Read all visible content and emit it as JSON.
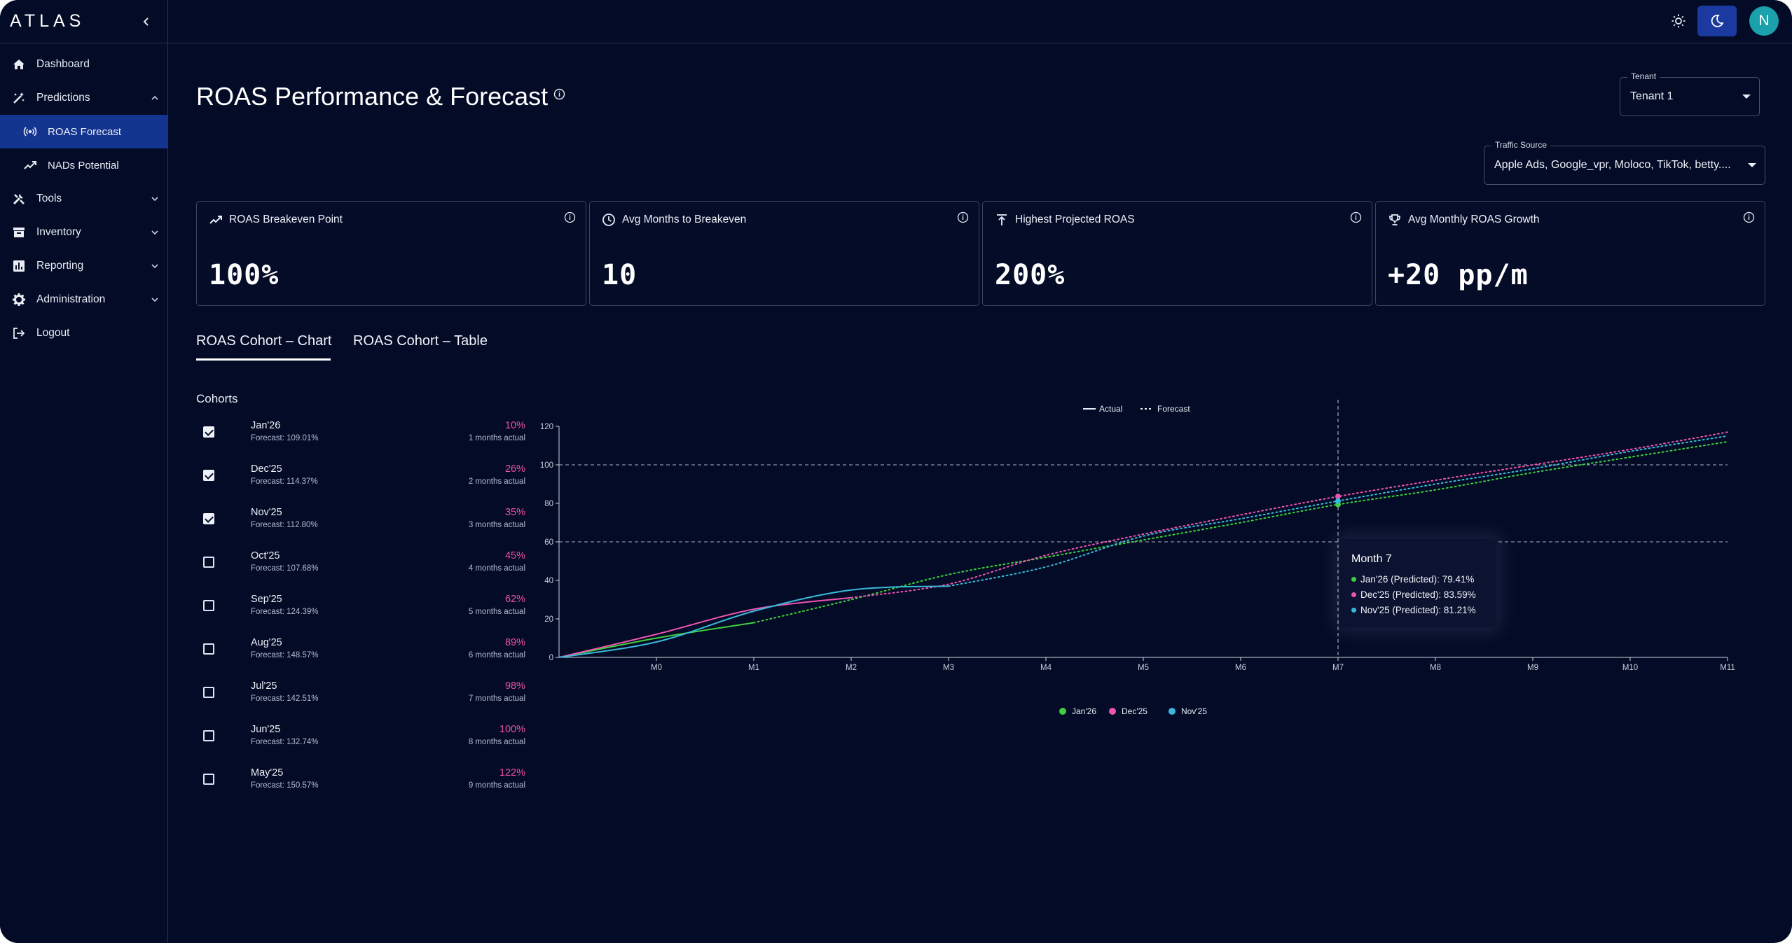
{
  "app": {
    "logo": "ATLAS",
    "avatar_initial": "N"
  },
  "sidebar": {
    "items": [
      {
        "label": "Dashboard",
        "icon": "home-icon"
      },
      {
        "label": "Predictions",
        "icon": "magic-wand-icon"
      },
      {
        "label": "ROAS Forecast",
        "icon": "broadcast-icon"
      },
      {
        "label": "NADs Potential",
        "icon": "trending-up-icon"
      },
      {
        "label": "Tools",
        "icon": "tools-icon"
      },
      {
        "label": "Inventory",
        "icon": "archive-icon"
      },
      {
        "label": "Reporting",
        "icon": "bar-chart-icon"
      },
      {
        "label": "Administration",
        "icon": "gear-icon"
      },
      {
        "label": "Logout",
        "icon": "logout-icon"
      }
    ]
  },
  "header": {
    "title": "ROAS Performance & Forecast"
  },
  "filters": {
    "tenant": {
      "label": "Tenant",
      "value": "Tenant 1"
    },
    "traffic": {
      "label": "Traffic Source",
      "value": "Apple Ads, Google_vpr, Moloco, TikTok, betty...."
    }
  },
  "kpis": [
    {
      "title": "ROAS Breakeven Point",
      "value": "100%",
      "icon": "trending-up-icon"
    },
    {
      "title": "Avg Months to Breakeven",
      "value": "10",
      "icon": "clock-icon"
    },
    {
      "title": "Highest Projected ROAS",
      "value": "200%",
      "icon": "arrow-top-icon"
    },
    {
      "title": "Avg Monthly ROAS Growth",
      "value": "+20 pp/m",
      "icon": "trophy-icon"
    }
  ],
  "tabs": [
    "ROAS Cohort – Chart",
    "ROAS Cohort – Table"
  ],
  "cohorts": {
    "title": "Cohorts",
    "rows": [
      {
        "name": "Jan'26",
        "forecast": "Forecast: 109.01%",
        "pct": "10%",
        "months": "1 months actual",
        "checked": true
      },
      {
        "name": "Dec'25",
        "forecast": "Forecast: 114.37%",
        "pct": "26%",
        "months": "2 months actual",
        "checked": true
      },
      {
        "name": "Nov'25",
        "forecast": "Forecast: 112.80%",
        "pct": "35%",
        "months": "3 months actual",
        "checked": true
      },
      {
        "name": "Oct'25",
        "forecast": "Forecast: 107.68%",
        "pct": "45%",
        "months": "4 months actual",
        "checked": false
      },
      {
        "name": "Sep'25",
        "forecast": "Forecast: 124.39%",
        "pct": "62%",
        "months": "5 months actual",
        "checked": false
      },
      {
        "name": "Aug'25",
        "forecast": "Forecast: 148.57%",
        "pct": "89%",
        "months": "6 months actual",
        "checked": false
      },
      {
        "name": "Jul'25",
        "forecast": "Forecast: 142.51%",
        "pct": "98%",
        "months": "7 months actual",
        "checked": false
      },
      {
        "name": "Jun'25",
        "forecast": "Forecast: 132.74%",
        "pct": "100%",
        "months": "8 months actual",
        "checked": false
      },
      {
        "name": "May'25",
        "forecast": "Forecast: 150.57%",
        "pct": "122%",
        "months": "9 months actual",
        "checked": false
      }
    ]
  },
  "chart_data": {
    "type": "line",
    "legend_top": [
      "Actual",
      "Forecast"
    ],
    "x": [
      "M0",
      "M1",
      "M2",
      "M3",
      "M4",
      "M5",
      "M6",
      "M7",
      "M8",
      "M9",
      "M10",
      "M11"
    ],
    "ylim": [
      0,
      120
    ],
    "yticks": [
      "0",
      "20",
      "40",
      "60",
      "80",
      "100",
      "120"
    ],
    "reference_lines": [
      60,
      100
    ],
    "crosshair_x": "M7",
    "series": [
      {
        "name": "Jan'26",
        "color": "#3ed03e",
        "actual_x": [
          -1,
          0,
          1
        ],
        "actual_y": [
          0,
          10,
          18
        ],
        "forecast_x": [
          1,
          2,
          3,
          4,
          5,
          6,
          7,
          8,
          9,
          10,
          11
        ],
        "forecast_y": [
          18,
          30,
          43,
          52,
          61,
          70,
          79.41,
          87,
          96,
          104,
          112
        ]
      },
      {
        "name": "Dec'25",
        "color": "#ef54b0",
        "actual_x": [
          -1,
          0,
          1,
          2
        ],
        "actual_y": [
          0,
          12,
          25,
          31
        ],
        "forecast_x": [
          2,
          3,
          4,
          5,
          6,
          7,
          8,
          9,
          10,
          11
        ],
        "forecast_y": [
          31,
          38,
          53,
          64,
          74,
          83.59,
          92,
          100,
          108,
          117
        ]
      },
      {
        "name": "Nov'25",
        "color": "#39b9d9",
        "actual_x": [
          -1,
          0,
          1,
          2,
          3
        ],
        "actual_y": [
          0,
          8,
          24,
          35,
          37
        ],
        "forecast_x": [
          3,
          4,
          5,
          6,
          7,
          8,
          9,
          10,
          11
        ],
        "forecast_y": [
          37,
          47,
          63,
          72,
          81.21,
          90,
          98,
          107,
          115
        ]
      }
    ],
    "tooltip": {
      "title": "Month 7",
      "lines": [
        "Jan'26 (Predicted): 79.41%",
        "Dec'25 (Predicted): 83.59%",
        "Nov'25 (Predicted): 81.21%"
      ]
    }
  }
}
